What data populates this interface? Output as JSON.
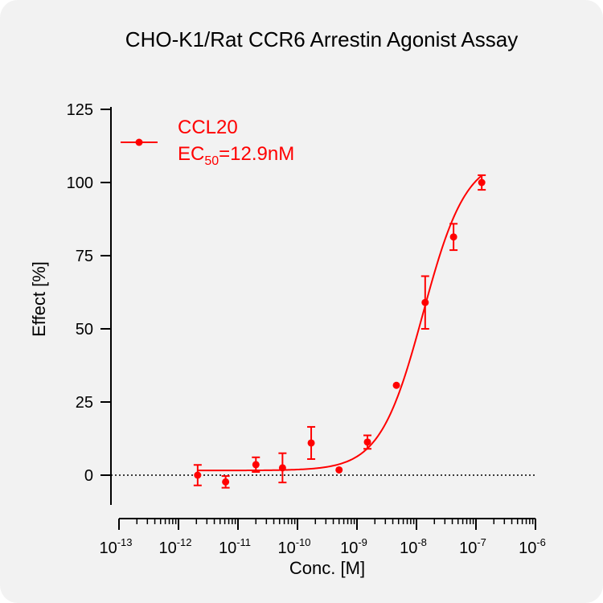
{
  "chart_data": {
    "type": "scatter",
    "title": "CHO-K1/Rat CCR6 Arrestin Agonist Assay",
    "xlabel": "Conc. [M]",
    "ylabel": "Effect  [%]",
    "x_scale": "log",
    "xlim": [
      1e-13,
      1e-06
    ],
    "ylim": [
      -10,
      125
    ],
    "x_ticks": [
      {
        "value": 1e-13,
        "base": "10",
        "exp": "-13"
      },
      {
        "value": 1e-12,
        "base": "10",
        "exp": "-12"
      },
      {
        "value": 1e-11,
        "base": "10",
        "exp": "-11"
      },
      {
        "value": 1e-10,
        "base": "10",
        "exp": "-10"
      },
      {
        "value": 1e-09,
        "base": "10",
        "exp": "-9"
      },
      {
        "value": 1e-08,
        "base": "10",
        "exp": "-8"
      },
      {
        "value": 1e-07,
        "base": "10",
        "exp": "-7"
      },
      {
        "value": 1e-06,
        "base": "10",
        "exp": "-6"
      }
    ],
    "y_ticks": [
      {
        "value": 0,
        "label": "0"
      },
      {
        "value": 25,
        "label": "25"
      },
      {
        "value": 50,
        "label": "50"
      },
      {
        "value": 75,
        "label": "75"
      },
      {
        "value": 100,
        "label": "100"
      },
      {
        "value": 125,
        "label": "125"
      }
    ],
    "baseline_y": 0,
    "series": [
      {
        "name": "CCL20",
        "color": "#ff0000",
        "points": [
          {
            "x": 2.1e-12,
            "y": 0.0,
            "err": 3.5
          },
          {
            "x": 6.2e-12,
            "y": -2.3,
            "err": 2.0
          },
          {
            "x": 2e-11,
            "y": 3.6,
            "err": 2.5
          },
          {
            "x": 5.6e-11,
            "y": 2.5,
            "err": 5.0
          },
          {
            "x": 1.7e-10,
            "y": 11.0,
            "err": 5.5
          },
          {
            "x": 5e-10,
            "y": 1.8,
            "err": 0
          },
          {
            "x": 1.5e-09,
            "y": 11.3,
            "err": 2.3
          },
          {
            "x": 4.6e-09,
            "y": 30.7,
            "err": 0
          },
          {
            "x": 1.4e-08,
            "y": 59.0,
            "err": 9.0
          },
          {
            "x": 4.2e-08,
            "y": 81.4,
            "err": 4.5
          },
          {
            "x": 1.25e-07,
            "y": 100.0,
            "err": 2.5
          }
        ],
        "fit": {
          "model": "4PL",
          "bottom": 1.6,
          "top": 109.0,
          "ec50": 1.29e-08,
          "hill": 1.2,
          "x_start": 2.1e-12,
          "x_end": 1.25e-07
        }
      }
    ],
    "legend": {
      "position": "top-left",
      "line1": "CCL20",
      "ec_prefix": "EC",
      "ec_sub": "50",
      "ec_value": "=12.9nM"
    }
  }
}
